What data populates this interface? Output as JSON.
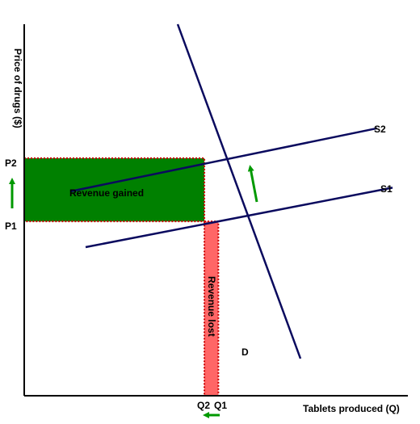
{
  "chart_data": {
    "type": "line",
    "title": "",
    "xlabel": "Tablets produced (Q)",
    "ylabel": "Price of drugs ($)",
    "grid": false,
    "legend": "none",
    "x_ticks": [
      "Q2",
      "Q1"
    ],
    "y_ticks": [
      "P2",
      "P1"
    ],
    "series": [
      {
        "name": "D",
        "points": [
          [
            10,
            100
          ],
          [
            18,
            10
          ]
        ]
      },
      {
        "name": "S1",
        "points": [
          [
            4,
            40
          ],
          [
            24,
            56
          ]
        ]
      },
      {
        "name": "S2",
        "points": [
          [
            3,
            55
          ],
          [
            23,
            72
          ]
        ]
      }
    ],
    "equilibria": {
      "before": {
        "q": 12.65,
        "price": 46.92,
        "q_label": "Q1",
        "price_label": "P1"
      },
      "after": {
        "q": 11.74,
        "price": 63.93,
        "q_label": "Q2",
        "price_label": "P2"
      }
    },
    "regions": [
      {
        "label": "Revenue gained",
        "x_range": [
          0,
          11.74
        ],
        "y_range": [
          46.92,
          63.93
        ],
        "color": "#008000"
      },
      {
        "label": "Revenue lost",
        "x_range": [
          11.74,
          12.65
        ],
        "y_range": [
          0,
          46.92
        ],
        "color": "#ff6666"
      }
    ],
    "arrows": [
      {
        "meaning": "price increase",
        "direction": "up",
        "color": "#009900"
      },
      {
        "meaning": "supply shift",
        "direction": "up",
        "color": "#009900"
      },
      {
        "meaning": "quantity decrease",
        "direction": "left",
        "color": "#009900"
      }
    ],
    "xlim": [
      0,
      25
    ],
    "ylim": [
      0,
      100
    ]
  },
  "colors": {
    "axis": "#000000",
    "curve": "#0a0a5e",
    "gain_fill": "#008000",
    "loss_fill": "#ff6666",
    "border_dots": "#cc0000",
    "arrow": "#009900"
  }
}
